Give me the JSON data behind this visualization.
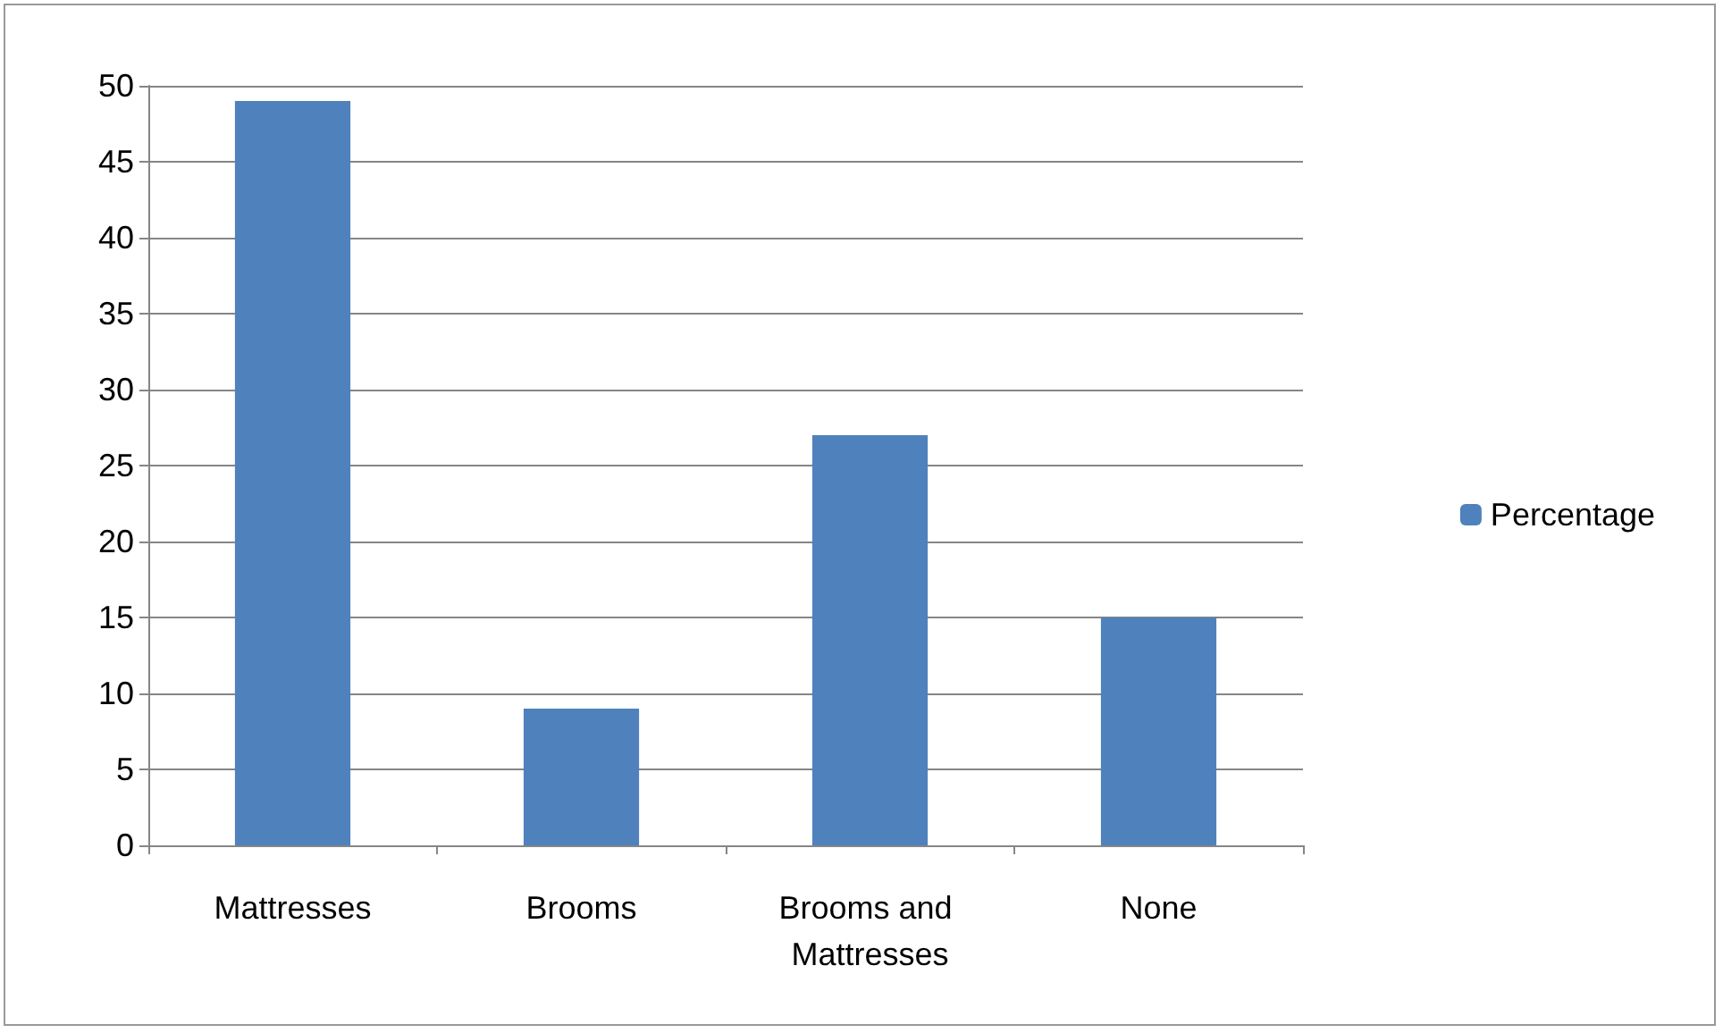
{
  "chart_data": {
    "type": "bar",
    "categories": [
      "Mattresses",
      "Brooms",
      "Brooms and Mattresses",
      "None"
    ],
    "series": [
      {
        "name": "Percentage",
        "color": "#4f81bd",
        "values": [
          49,
          9,
          27,
          15
        ]
      }
    ],
    "ylim": [
      0,
      50
    ],
    "yticks": [
      0,
      5,
      10,
      15,
      20,
      25,
      30,
      35,
      40,
      45,
      50
    ],
    "grid": "y",
    "legend": "right"
  }
}
